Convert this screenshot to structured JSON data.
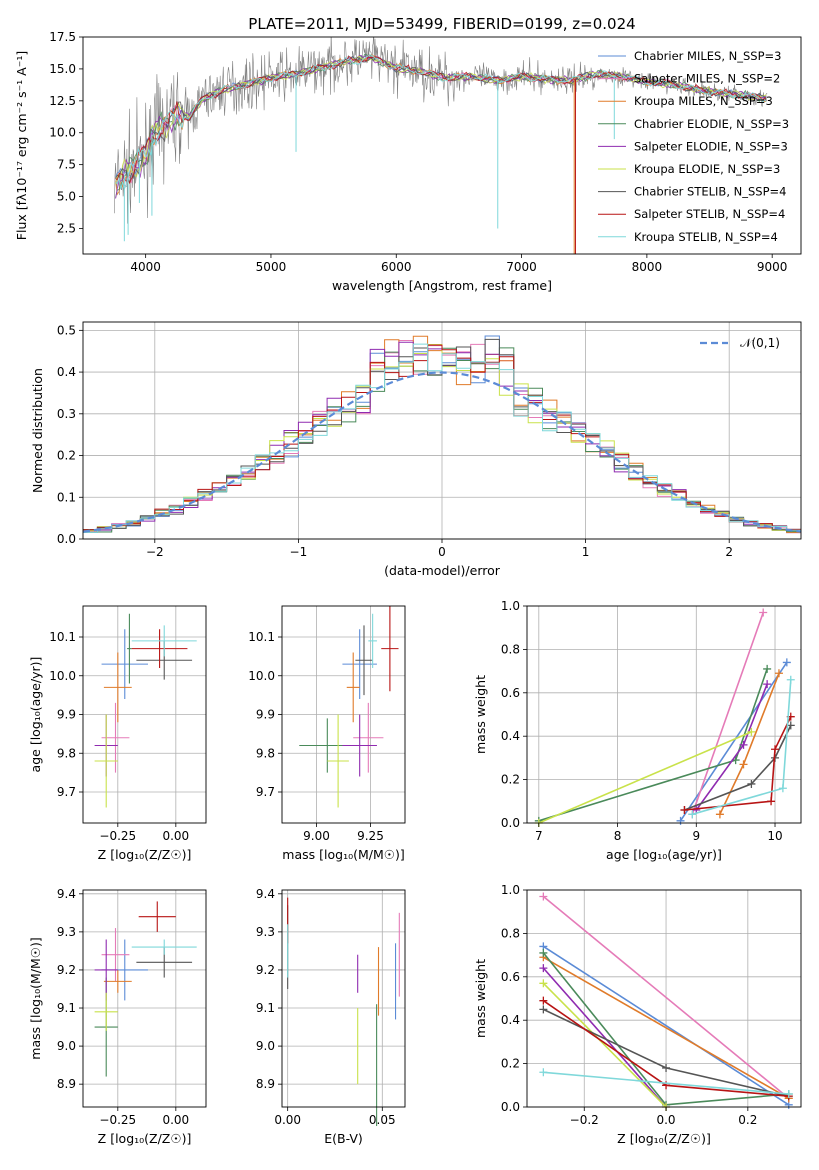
{
  "colors": [
    "#5b8bd6",
    "#e57bb8",
    "#e07b2a",
    "#4a8a5a",
    "#8f2bb0",
    "#c9e24a",
    "#555555",
    "#b81414",
    "#7fd8da"
  ],
  "chart_data": [
    {
      "id": "spectrum",
      "type": "line",
      "title": "PLATE=2011, MJD=53499, FIBERID=0199, z=0.024",
      "xlabel": "wavelength [Angstrom, rest frame]",
      "ylabel": "Flux [fλ10⁻¹⁷ erg cm⁻² s⁻¹ A⁻¹]",
      "xlim": [
        3500,
        9230
      ],
      "ylim": [
        0.5,
        17.5
      ],
      "xticks": [
        4000,
        5000,
        6000,
        7000,
        8000,
        9000
      ],
      "yticks": [
        2.5,
        5.0,
        7.5,
        10.0,
        12.5,
        15.0,
        17.5
      ],
      "legend": "top-right",
      "series": [
        {
          "name": "Chabrier MILES, N_SSP=3"
        },
        {
          "name": "Salpeter MILES, N_SSP=2"
        },
        {
          "name": "Kroupa MILES, N_SSP=3"
        },
        {
          "name": "Chabrier ELODIE, N_SSP=3"
        },
        {
          "name": "Salpeter ELODIE, N_SSP=3"
        },
        {
          "name": "Kroupa ELODIE, N_SSP=3"
        },
        {
          "name": "Chabrier STELIB, N_SSP=4"
        },
        {
          "name": "Salpeter STELIB, N_SSP=4"
        },
        {
          "name": "Kroupa STELIB, N_SSP=4"
        }
      ],
      "continuum_x": [
        3750,
        3800,
        3900,
        4000,
        4050,
        4150,
        4250,
        4350,
        4450,
        4600,
        4800,
        5000,
        5200,
        5400,
        5600,
        5800,
        6000,
        6200,
        6400,
        6600,
        6800,
        7000,
        7200,
        7400,
        7600,
        7800,
        8000,
        8200,
        8400,
        8600,
        8800,
        9000
      ],
      "continuum_y": [
        5.5,
        6.5,
        7.2,
        8.2,
        9.8,
        10.5,
        11.5,
        11.2,
        12.6,
        13.3,
        13.8,
        14.3,
        14.6,
        15.1,
        15.6,
        15.9,
        15.1,
        14.8,
        14.3,
        14.4,
        14.1,
        14.4,
        14.2,
        14.1,
        14.6,
        14.4,
        14.0,
        13.8,
        13.4,
        13.1,
        12.9,
        12.6
      ]
    },
    {
      "id": "residuals",
      "type": "bar",
      "xlabel": "(data-model)/error",
      "ylabel": "Normed distribution",
      "xlim": [
        -2.5,
        2.5
      ],
      "ylim": [
        0,
        0.52
      ],
      "xticks": [
        -2,
        -1,
        0,
        1,
        2
      ],
      "yticks": [
        0.0,
        0.1,
        0.2,
        0.3,
        0.4,
        0.5
      ],
      "legend": "top-right",
      "reference_curve": "𝒩(0,1)"
    },
    {
      "id": "Z-age",
      "type": "scatter",
      "xlabel": "Z [log₁₀(Z/Z☉)]",
      "ylabel": "age [log₁₀(age/yr)]",
      "xlim": [
        -0.4,
        0.13
      ],
      "ylim": [
        9.62,
        10.18
      ],
      "xticks": [
        -0.25,
        0.0
      ],
      "yticks": [
        9.7,
        9.8,
        9.9,
        10.0,
        10.1
      ],
      "points": [
        {
          "c": 0,
          "x": -0.22,
          "xe": 0.1,
          "y": 10.03,
          "ye": 0.09
        },
        {
          "c": 1,
          "x": -0.26,
          "xe": 0.06,
          "y": 9.84,
          "ye": 0.09
        },
        {
          "c": 2,
          "x": -0.25,
          "xe": 0.06,
          "y": 9.97,
          "ye": 0.09
        },
        {
          "c": 3,
          "x": -0.2,
          "xe": 0.01,
          "y": 10.07,
          "ye": 0.09
        },
        {
          "c": 4,
          "x": -0.3,
          "xe": 0.05,
          "y": 9.82,
          "ye": 0.08
        },
        {
          "c": 5,
          "x": -0.3,
          "xe": 0.05,
          "y": 9.78,
          "ye": 0.12
        },
        {
          "c": 6,
          "x": -0.05,
          "xe": 0.12,
          "y": 10.04,
          "ye": 0.05
        },
        {
          "c": 7,
          "x": -0.07,
          "xe": 0.12,
          "y": 10.07,
          "ye": 0.05
        },
        {
          "c": 8,
          "x": -0.05,
          "xe": 0.14,
          "y": 10.09,
          "ye": 0.04
        }
      ]
    },
    {
      "id": "mass-age",
      "type": "scatter",
      "xlabel": "mass [log₁₀(M/M☉)]",
      "ylabel": "",
      "xlim": [
        8.84,
        9.41
      ],
      "ylim": [
        9.62,
        10.18
      ],
      "xticks": [
        9.0,
        9.25
      ],
      "yticks": [
        9.7,
        9.8,
        9.9,
        10.0,
        10.1
      ],
      "points": [
        {
          "c": 0,
          "x": 9.2,
          "xe": 0.08,
          "y": 10.03,
          "ye": 0.09
        },
        {
          "c": 1,
          "x": 9.24,
          "xe": 0.07,
          "y": 9.84,
          "ye": 0.09
        },
        {
          "c": 2,
          "x": 9.17,
          "xe": 0.03,
          "y": 9.97,
          "ye": 0.09
        },
        {
          "c": 3,
          "x": 9.05,
          "xe": 0.13,
          "y": 9.82,
          "ye": 0.07
        },
        {
          "c": 4,
          "x": 9.2,
          "xe": 0.08,
          "y": 9.82,
          "ye": 0.08
        },
        {
          "c": 5,
          "x": 9.1,
          "xe": 0.05,
          "y": 9.78,
          "ye": 0.12
        },
        {
          "c": 6,
          "x": 9.22,
          "xe": 0.04,
          "y": 10.04,
          "ye": 0.09
        },
        {
          "c": 7,
          "x": 9.34,
          "xe": 0.04,
          "y": 10.07,
          "ye": 0.11
        },
        {
          "c": 8,
          "x": 9.26,
          "xe": 0.02,
          "y": 10.09,
          "ye": 0.07
        }
      ]
    },
    {
      "id": "age-weight",
      "type": "line",
      "xlabel": "age [log₁₀(age/yr)]",
      "ylabel": "mass weight",
      "xlim": [
        6.85,
        10.33
      ],
      "ylim": [
        0,
        1.0
      ],
      "xticks": [
        7,
        8,
        9,
        10
      ],
      "yticks": [
        0.0,
        0.2,
        0.4,
        0.6,
        0.8,
        1.0
      ],
      "series": [
        {
          "c": 0,
          "x": [
            8.8,
            10.15
          ],
          "y": [
            0.01,
            0.74
          ]
        },
        {
          "c": 1,
          "x": [
            8.95,
            9.85
          ],
          "y": [
            0.04,
            0.97
          ]
        },
        {
          "c": 2,
          "x": [
            9.3,
            9.6,
            10.05
          ],
          "y": [
            0.04,
            0.27,
            0.69
          ]
        },
        {
          "c": 3,
          "x": [
            7.0,
            9.5,
            9.9
          ],
          "y": [
            0.01,
            0.29,
            0.71
          ]
        },
        {
          "c": 4,
          "x": [
            9.0,
            9.6,
            9.9
          ],
          "y": [
            0.06,
            0.36,
            0.64
          ]
        },
        {
          "c": 5,
          "x": [
            7.0,
            9.7
          ],
          "y": [
            0.0,
            0.42
          ]
        },
        {
          "c": 6,
          "x": [
            8.85,
            9.7,
            10.0,
            10.2
          ],
          "y": [
            0.06,
            0.18,
            0.3,
            0.45
          ]
        },
        {
          "c": 7,
          "x": [
            8.85,
            9.95,
            10.0,
            10.2
          ],
          "y": [
            0.06,
            0.1,
            0.34,
            0.49
          ]
        },
        {
          "c": 8,
          "x": [
            8.95,
            10.1,
            10.2
          ],
          "y": [
            0.04,
            0.16,
            0.66
          ]
        }
      ]
    },
    {
      "id": "Z-mass",
      "type": "scatter",
      "xlabel": "Z [log₁₀(Z/Z☉)]",
      "ylabel": "mass [log₁₀(M/M☉)]",
      "xlim": [
        -0.4,
        0.13
      ],
      "ylim": [
        8.84,
        9.41
      ],
      "xticks": [
        -0.25,
        0.0
      ],
      "yticks": [
        8.9,
        9.0,
        9.1,
        9.2,
        9.3,
        9.4
      ],
      "points": [
        {
          "c": 0,
          "x": -0.22,
          "xe": 0.1,
          "y": 9.2,
          "ye": 0.08
        },
        {
          "c": 1,
          "x": -0.26,
          "xe": 0.06,
          "y": 9.24,
          "ye": 0.07
        },
        {
          "c": 2,
          "x": -0.25,
          "xe": 0.06,
          "y": 9.17,
          "ye": 0.03
        },
        {
          "c": 3,
          "x": -0.3,
          "xe": 0.05,
          "y": 9.05,
          "ye": 0.13
        },
        {
          "c": 4,
          "x": -0.3,
          "xe": 0.05,
          "y": 9.2,
          "ye": 0.08
        },
        {
          "c": 5,
          "x": -0.3,
          "xe": 0.05,
          "y": 9.09,
          "ye": 0.05
        },
        {
          "c": 6,
          "x": -0.05,
          "xe": 0.12,
          "y": 9.22,
          "ye": 0.04
        },
        {
          "c": 7,
          "x": -0.08,
          "xe": 0.08,
          "y": 9.34,
          "ye": 0.04
        },
        {
          "c": 8,
          "x": -0.05,
          "xe": 0.14,
          "y": 9.26,
          "ye": 0.02
        }
      ]
    },
    {
      "id": "EBV-mass",
      "type": "scatter",
      "xlabel": "E(B-V)",
      "ylabel": "",
      "xlim": [
        -0.003,
        0.062
      ],
      "ylim": [
        8.84,
        9.41
      ],
      "xticks": [
        0.0,
        0.05
      ],
      "yticks": [
        8.9,
        9.0,
        9.1,
        9.2,
        9.3,
        9.4
      ],
      "points": [
        {
          "c": 0,
          "x": 0.057,
          "xe": 0,
          "y": 9.17,
          "ye": 0.1
        },
        {
          "c": 1,
          "x": 0.059,
          "xe": 0,
          "y": 9.24,
          "ye": 0.11
        },
        {
          "c": 2,
          "x": 0.048,
          "xe": 0,
          "y": 9.17,
          "ye": 0.09
        },
        {
          "c": 3,
          "x": 0.047,
          "xe": 0,
          "y": 8.95,
          "ye": 0.16
        },
        {
          "c": 4,
          "x": 0.037,
          "xe": 0,
          "y": 9.19,
          "ye": 0.05
        },
        {
          "c": 5,
          "x": 0.037,
          "xe": 0,
          "y": 9.0,
          "ye": 0.1
        },
        {
          "c": 6,
          "x": 0.0,
          "xe": 0,
          "y": 9.26,
          "ye": 0.11
        },
        {
          "c": 7,
          "x": 0.0,
          "xe": 0,
          "y": 9.33,
          "ye": 0.06
        },
        {
          "c": 8,
          "x": 0.0,
          "xe": 0,
          "y": 9.25,
          "ye": 0.07
        }
      ]
    },
    {
      "id": "Z-weight",
      "type": "line",
      "xlabel": "Z [log₁₀(Z/Z☉)]",
      "ylabel": "mass weight",
      "xlim": [
        -0.34,
        0.33
      ],
      "ylim": [
        0,
        1.0
      ],
      "xticks": [
        -0.2,
        0.0,
        0.2
      ],
      "yticks": [
        0.0,
        0.2,
        0.4,
        0.6,
        0.8,
        1.0
      ],
      "series": [
        {
          "c": 0,
          "x": [
            -0.3,
            0.3
          ],
          "y": [
            0.74,
            0.01
          ]
        },
        {
          "c": 1,
          "x": [
            -0.3,
            0.3
          ],
          "y": [
            0.97,
            0.04
          ]
        },
        {
          "c": 2,
          "x": [
            -0.3,
            0.3
          ],
          "y": [
            0.69,
            0.04
          ]
        },
        {
          "c": 3,
          "x": [
            -0.3,
            0.0,
            0.3
          ],
          "y": [
            0.71,
            0.01,
            0.06
          ]
        },
        {
          "c": 4,
          "x": [
            -0.3,
            0.0
          ],
          "y": [
            0.64,
            0.0
          ]
        },
        {
          "c": 5,
          "x": [
            -0.3,
            0.0
          ],
          "y": [
            0.57,
            0.0
          ]
        },
        {
          "c": 6,
          "x": [
            -0.3,
            0.0,
            0.3
          ],
          "y": [
            0.45,
            0.18,
            0.05
          ]
        },
        {
          "c": 7,
          "x": [
            -0.3,
            0.0,
            0.3
          ],
          "y": [
            0.49,
            0.1,
            0.05
          ]
        },
        {
          "c": 8,
          "x": [
            -0.3,
            0.3
          ],
          "y": [
            0.16,
            0.06
          ]
        }
      ]
    }
  ]
}
